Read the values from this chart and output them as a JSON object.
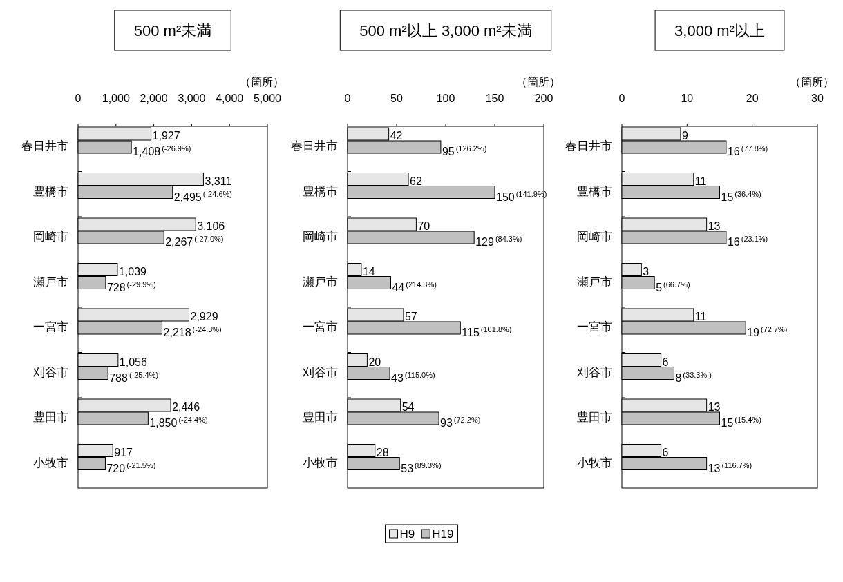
{
  "chart_data": [
    {
      "type": "bar",
      "orientation": "horizontal",
      "title": "500 m²未満",
      "xlabel": "（箇所）",
      "categories": [
        "春日井市",
        "豊橋市",
        "岡崎市",
        "瀬戸市",
        "一宮市",
        "刈谷市",
        "豊田市",
        "小牧市"
      ],
      "series": [
        {
          "color": "#e6e6e6",
          "values": [
            1927,
            3311,
            3106,
            1039,
            2929,
            1056,
            2446,
            917
          ],
          "value_labels": [
            "1,927",
            "3,311",
            "3,106",
            "1,039",
            "2,929",
            "1,056",
            "2,446",
            "917"
          ]
        },
        {
          "color": "#c0c0c0",
          "values": [
            1408,
            2495,
            2267,
            728,
            2218,
            788,
            1850,
            720
          ],
          "value_labels": [
            "1,408",
            "2,495",
            "2,267",
            "728",
            "2,218",
            "788",
            "1,850",
            "720"
          ]
        }
      ],
      "xlim": [
        0,
        5000
      ],
      "xticks": [
        0,
        {
          "value": 1000,
          "label": "1,000"
        },
        {
          "value": 2000,
          "label": "2,000"
        },
        {
          "value": 3000,
          "label": "3,000"
        },
        {
          "value": 4000,
          "label": "4,000"
        },
        {
          "value": 5000,
          "label": "5,000"
        }
      ],
      "annotations": [
        "(-26.9%)",
        "(-24.6%)",
        "(-27.0%)",
        "(-29.9%)",
        "(-24.3%)",
        "(-25.4%)",
        "(-24.4%)",
        "(-21.5%)"
      ]
    },
    {
      "type": "bar",
      "orientation": "horizontal",
      "title": "500 m²以上 3,000 m²未満",
      "xlabel": "（箇所）",
      "categories": [
        "春日井市",
        "豊橋市",
        "岡崎市",
        "瀬戸市",
        "一宮市",
        "刈谷市",
        "豊田市",
        "小牧市"
      ],
      "series": [
        {
          "name": "H9",
          "color": "#e6e6e6",
          "values": [
            42,
            62,
            70,
            14,
            57,
            20,
            54,
            28
          ]
        },
        {
          "name": "H19",
          "color": "#c0c0c0",
          "values": [
            95,
            150,
            129,
            44,
            115,
            43,
            93,
            53
          ]
        }
      ],
      "xlim": [
        0,
        200
      ],
      "xticks": [
        0,
        50,
        100,
        150,
        200
      ],
      "data_labels": true,
      "legend": "bottom",
      "annotations": [
        {
          "text": "(126.2%)",
          "x": 95,
          "y": "春日井市"
        },
        {
          "text": "(141.9%)",
          "x": 150,
          "y": "豊橋市"
        },
        {
          "text": "(84.3%)",
          "x": 129,
          "y": "岡崎市"
        },
        {
          "text": "(214.3%)",
          "x": 44,
          "y": "瀬戸市"
        },
        {
          "text": "(101.8%)",
          "x": 115,
          "y": "一宮市"
        },
        {
          "text": "(115.0%)",
          "x": 43,
          "y": "刈谷市"
        },
        {
          "text": "(72.2%)",
          "x": 93,
          "y": "豊田市"
        },
        {
          "text": "(89.3%)",
          "x": 53,
          "y": "小牧市"
        }
      ]
    },
    {
      "type": "bar",
      "orientation": "horizontal",
      "title": "3,000 m²以上",
      "xlabel": "（箇所）",
      "categories": [
        "春日井市",
        "豊橋市",
        "岡崎市",
        "瀬戸市",
        "一宮市",
        "刈谷市",
        "豊田市",
        "小牧市"
      ],
      "series": [
        {
          "color": "#e6e6e6",
          "values": [
            9,
            11,
            13,
            3,
            11,
            6,
            13,
            6
          ]
        },
        {
          "color": "#c0c0c0",
          "values": [
            16,
            15,
            16,
            5,
            19,
            8,
            15,
            13
          ]
        }
      ],
      "xlim": [
        0,
        30
      ],
      "xticks": [
        0,
        10,
        20,
        30
      ],
      "data_labels": true,
      "annotations": [
        {
          "text": "(77.8%)",
          "x": 16,
          "y": "春日井市"
        },
        {
          "text": "(36.4%)",
          "x": 15,
          "y": "豊橋市"
        },
        {
          "text": "(23.1%)",
          "x": 16,
          "y": "岡崎市"
        },
        {
          "text": "(66.7%)",
          "x": 5,
          "y": "瀬戸市"
        },
        {
          "text": "(72.7%)",
          "x": 19,
          "y": "一宮市"
        },
        {
          "text": "(33.3% )",
          "x": 8,
          "y": "刈谷市"
        },
        {
          "text": "(15.4%)",
          "x": 15,
          "y": "豊田市"
        },
        {
          "text": "(116.7%)",
          "x": 13,
          "y": "小牧市"
        }
      ]
    }
  ]
}
